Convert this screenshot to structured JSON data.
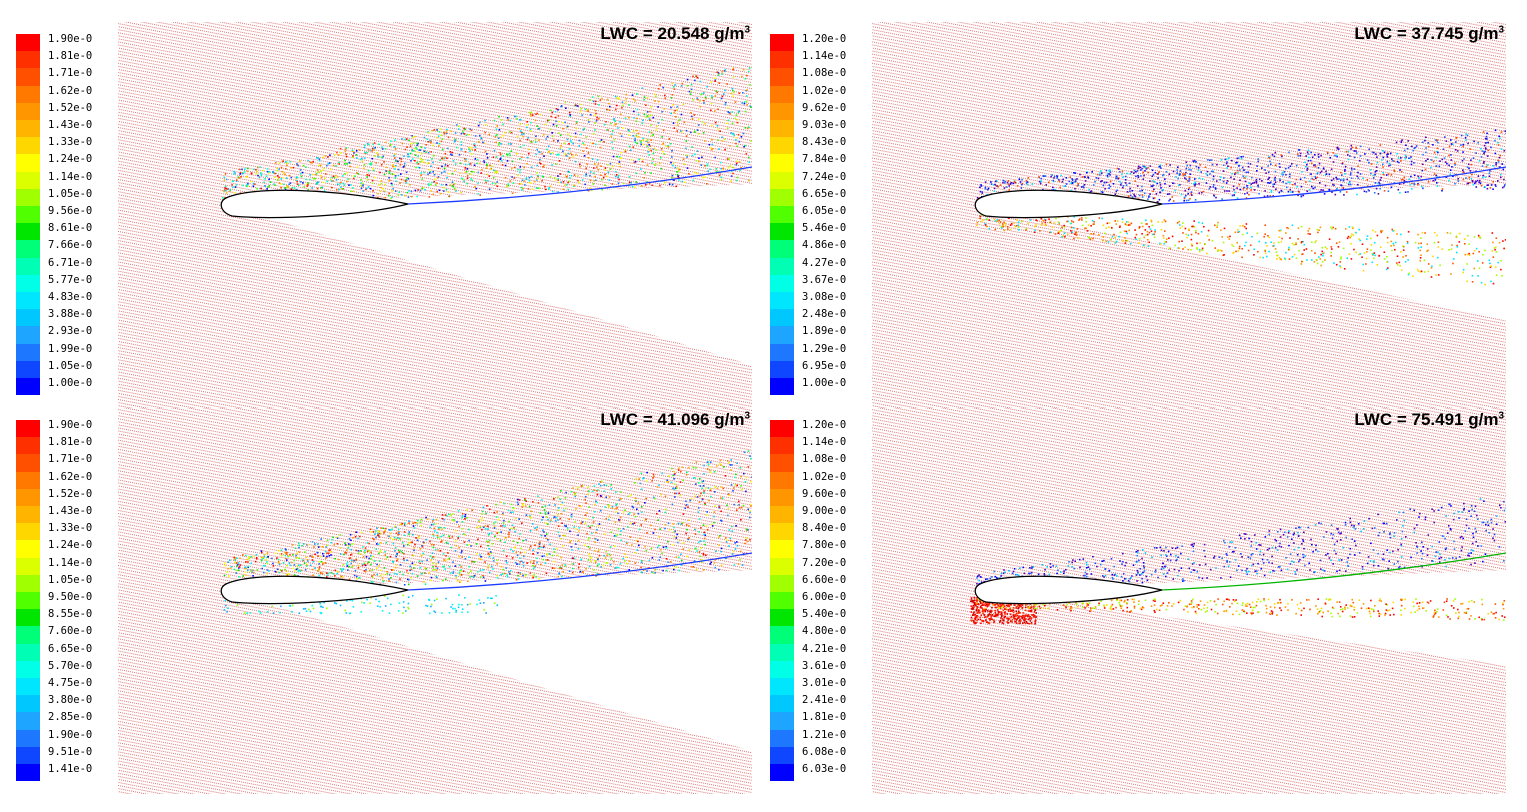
{
  "legend_colors": [
    "#0000ff",
    "#0f46ff",
    "#1e78ff",
    "#1ea5ff",
    "#00c8ff",
    "#00e6ff",
    "#00ffe6",
    "#00ffb4",
    "#00ff78",
    "#00e600",
    "#50ff00",
    "#a0ff00",
    "#dcff00",
    "#ffff00",
    "#ffd700",
    "#ffb400",
    "#ff9600",
    "#ff7800",
    "#ff5000",
    "#ff3000",
    "#ff0000"
  ],
  "panels": [
    {
      "title_prefix": "LWC = 20.548 g/m",
      "title_exp": "3",
      "ticks": [
        "1.90e-0",
        "1.81e-0",
        "1.71e-0",
        "1.62e-0",
        "1.52e-0",
        "1.43e-0",
        "1.33e-0",
        "1.24e-0",
        "1.14e-0",
        "1.05e-0",
        "9.56e-0",
        "8.61e-0",
        "7.66e-0",
        "6.71e-0",
        "5.77e-0",
        "4.83e-0",
        "3.88e-0",
        "2.93e-0",
        "1.99e-0",
        "1.05e-0",
        "1.00e-0"
      ],
      "upper_scatter": "mixed",
      "lower_scatter": "none"
    },
    {
      "title_prefix": "LWC = 37.745 g/m",
      "title_exp": "3",
      "ticks": [
        "1.20e-0",
        "1.14e-0",
        "1.08e-0",
        "1.02e-0",
        "9.62e-0",
        "9.03e-0",
        "8.43e-0",
        "7.84e-0",
        "7.24e-0",
        "6.65e-0",
        "6.05e-0",
        "5.46e-0",
        "4.86e-0",
        "4.27e-0",
        "3.67e-0",
        "3.08e-0",
        "2.48e-0",
        "1.89e-0",
        "1.29e-0",
        "6.95e-0",
        "1.00e-0"
      ],
      "upper_scatter": "blue",
      "lower_scatter": "warm"
    },
    {
      "title_prefix": "LWC = 41.096 g/m",
      "title_exp": "3",
      "ticks": [
        "1.90e-0",
        "1.81e-0",
        "1.71e-0",
        "1.62e-0",
        "1.52e-0",
        "1.43e-0",
        "1.33e-0",
        "1.24e-0",
        "1.14e-0",
        "1.05e-0",
        "9.50e-0",
        "8.55e-0",
        "7.60e-0",
        "6.65e-0",
        "5.70e-0",
        "4.75e-0",
        "3.80e-0",
        "2.85e-0",
        "1.90e-0",
        "9.51e-0",
        "1.41e-0"
      ],
      "upper_scatter": "mixed",
      "lower_scatter": "cyan"
    },
    {
      "title_prefix": "LWC = 75.491 g/m",
      "title_exp": "3",
      "ticks": [
        "1.20e-0",
        "1.14e-0",
        "1.08e-0",
        "1.02e-0",
        "9.60e-0",
        "9.00e-0",
        "8.40e-0",
        "7.80e-0",
        "7.20e-0",
        "6.60e-0",
        "6.00e-0",
        "5.40e-0",
        "4.80e-0",
        "4.21e-0",
        "3.61e-0",
        "3.01e-0",
        "2.41e-0",
        "1.81e-0",
        "1.21e-0",
        "6.08e-0",
        "6.03e-0"
      ],
      "upper_scatter": "sparse-blue",
      "lower_scatter": "red"
    }
  ]
}
